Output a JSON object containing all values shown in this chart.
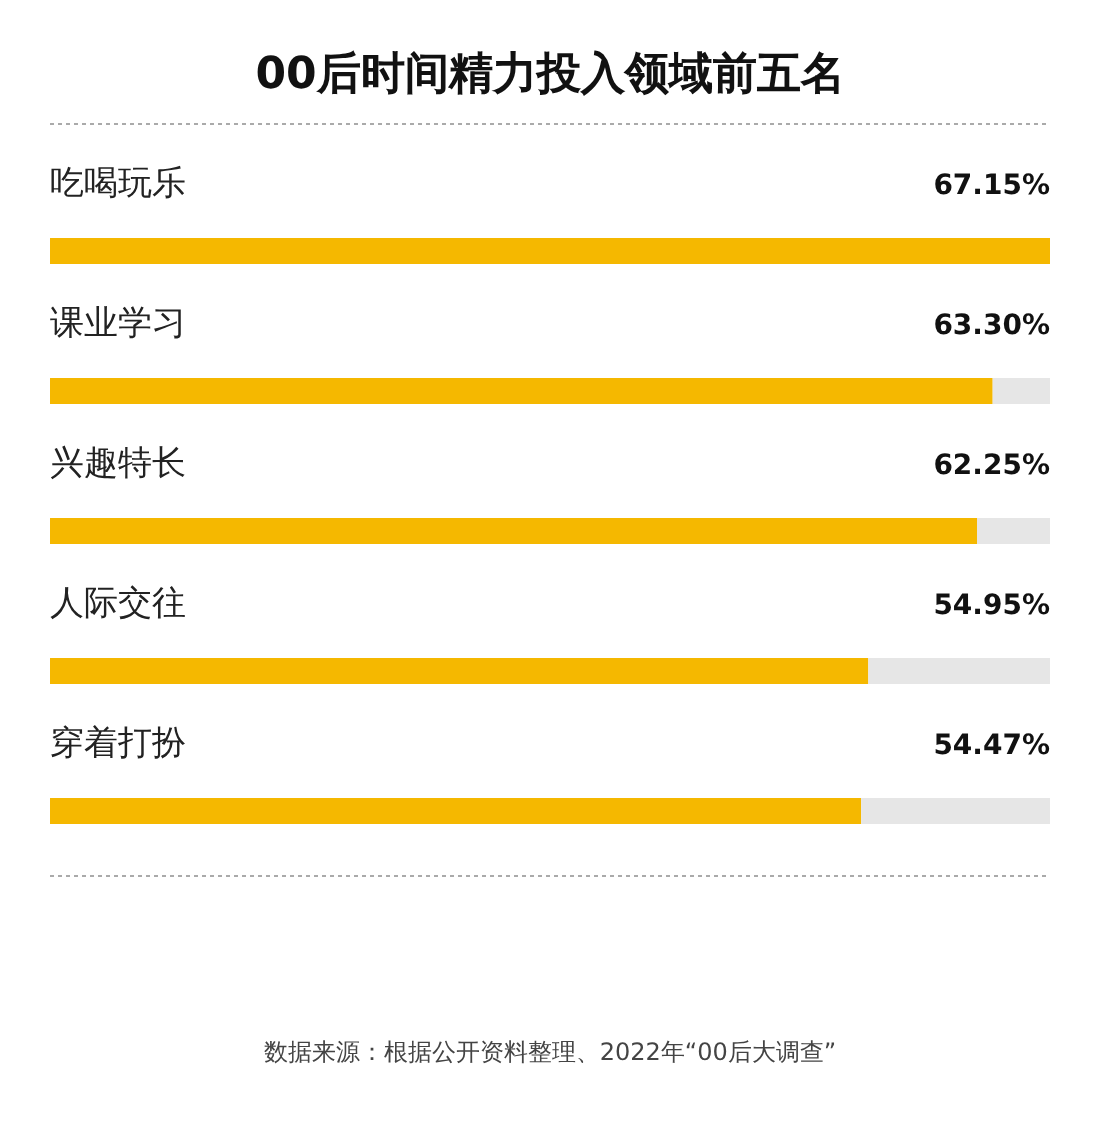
{
  "chart_data": {
    "type": "bar",
    "orientation": "horizontal",
    "title": "00后时间精力投入领域前五名",
    "categories": [
      "吃喝玩乐",
      "课业学习",
      "兴趣特长",
      "人际交往",
      "穿着打扮"
    ],
    "values": [
      67.15,
      63.3,
      62.25,
      54.95,
      54.47
    ],
    "value_labels": [
      "67.15%",
      "63.30%",
      "62.25%",
      "54.95%",
      "54.47%"
    ],
    "color": "#f5b800",
    "annotations": [
      "数据来源：根据公开资料整理、2022年“00后大调查”"
    ]
  }
}
